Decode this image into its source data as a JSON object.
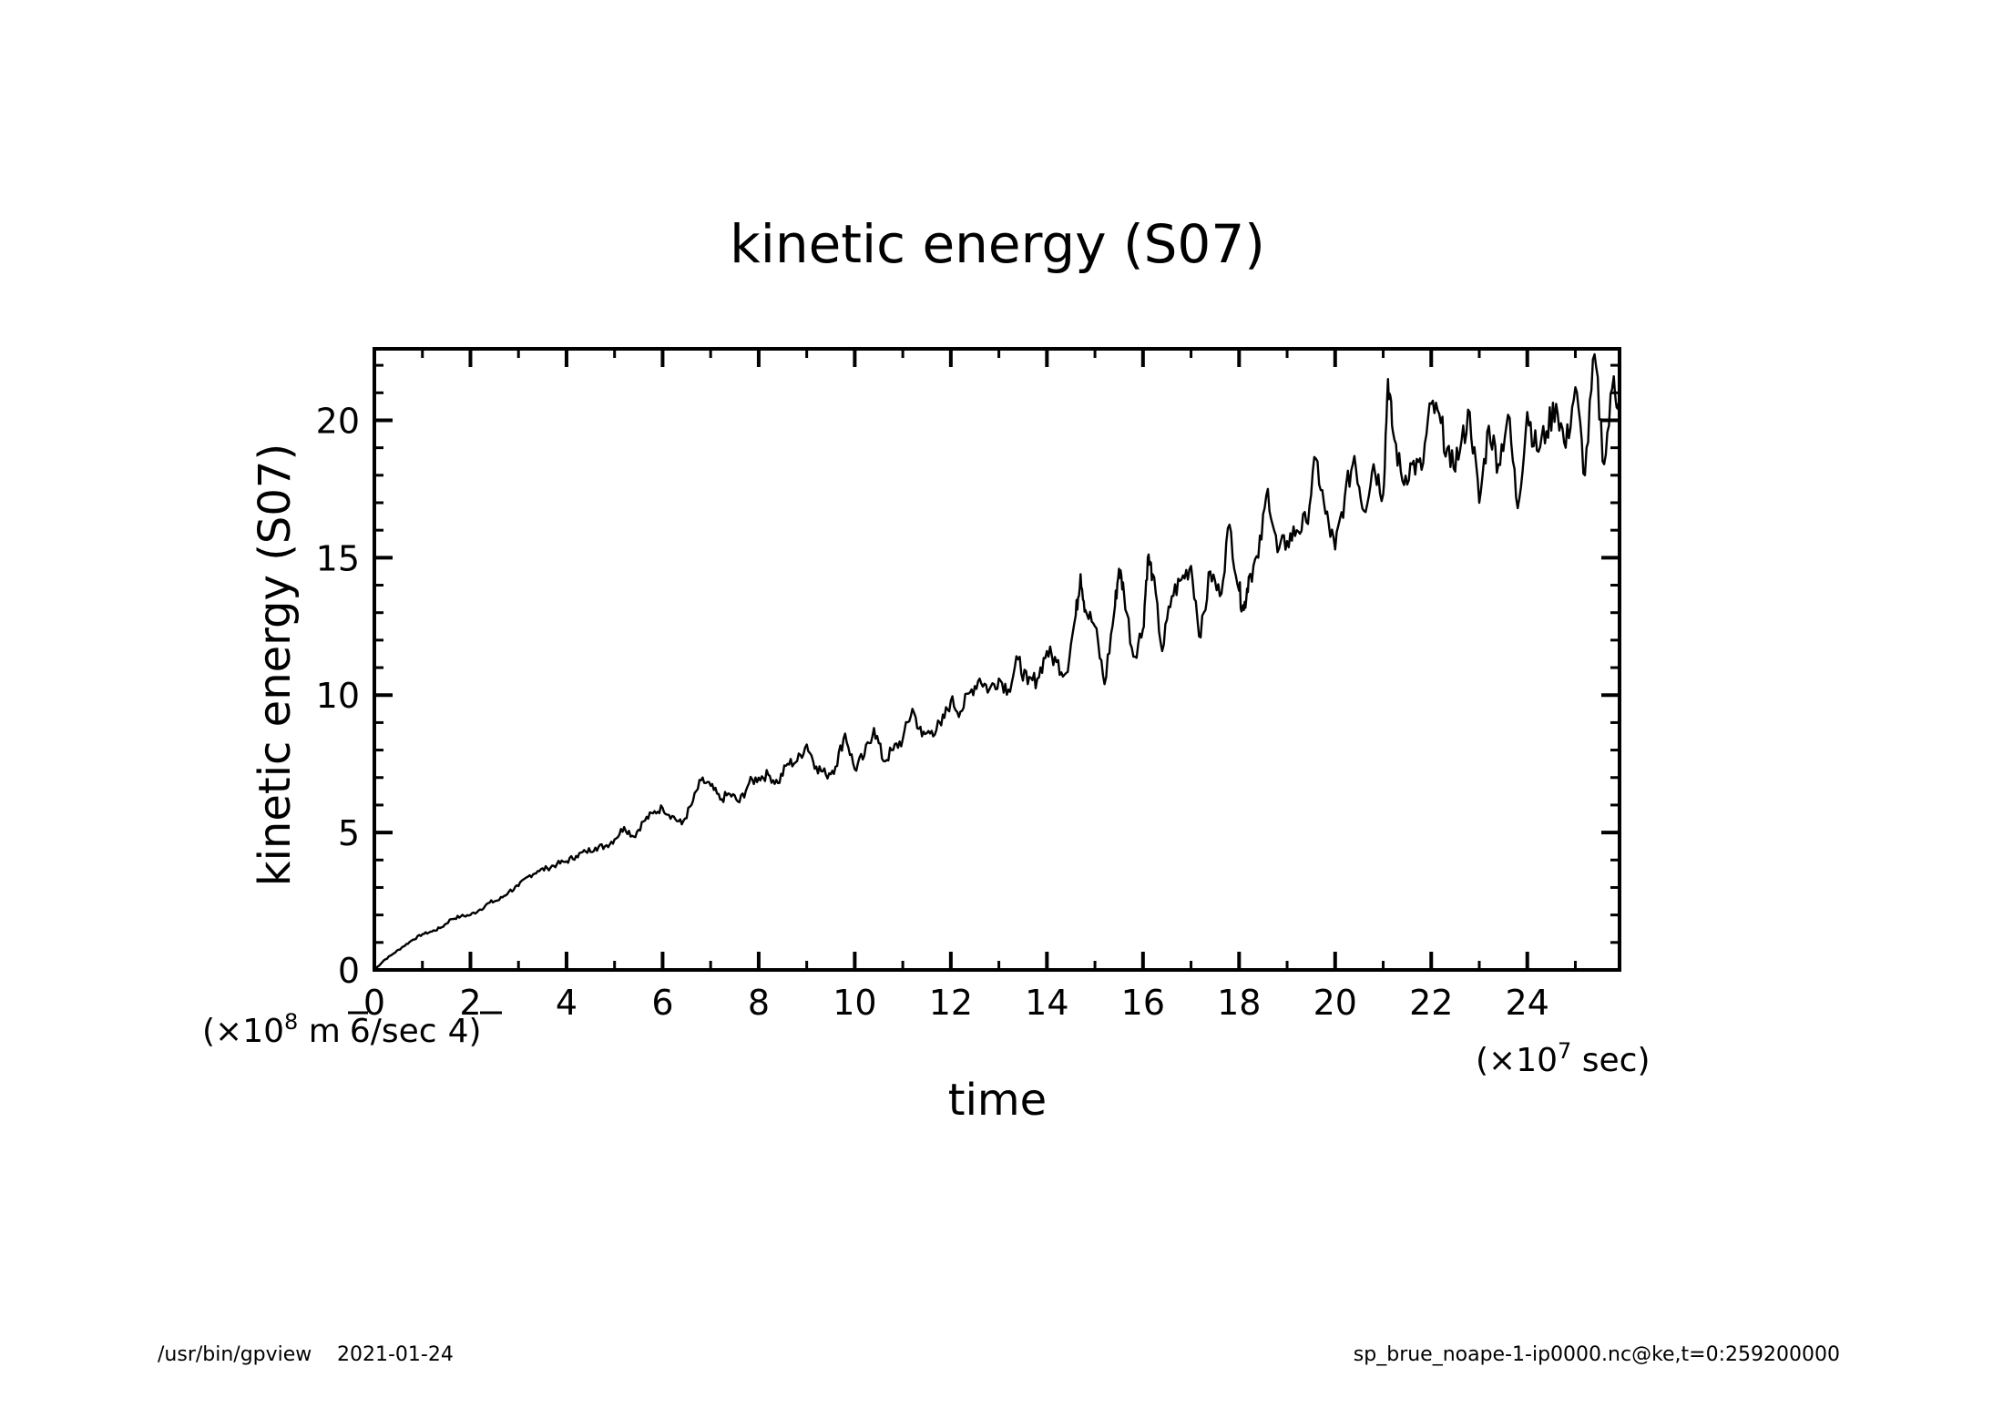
{
  "chart_data": {
    "type": "line",
    "title": "kinetic energy (S07)",
    "xlabel": "time",
    "ylabel": "kinetic energy (S07)",
    "x_unit": "(×10^7 sec)",
    "x_unit_base": "(×10",
    "x_unit_exp": "7",
    "x_unit_rest": " sec)",
    "y_unit_base": "(×10",
    "y_unit_exp": "8",
    "y_unit_rest": " m^6/sec^4)",
    "y_unit_display_m": " m",
    "y_unit_display_6": "6/sec",
    "y_unit_display_4": "4)",
    "xlim": [
      0,
      25.92
    ],
    "ylim": [
      0,
      22.6
    ],
    "x_major_ticks": [
      0,
      2,
      4,
      6,
      8,
      10,
      12,
      14,
      16,
      18,
      20,
      22,
      24
    ],
    "x_tick_labels": [
      "0",
      "2",
      "4",
      "6",
      "8",
      "10",
      "12",
      "14",
      "16",
      "18",
      "20",
      "22",
      "24"
    ],
    "x_minor_step": 1,
    "y_major_ticks": [
      0,
      5,
      10,
      15,
      20
    ],
    "y_tick_labels": [
      "0",
      "5",
      "10",
      "15",
      "20"
    ],
    "y_minor_step": 1,
    "grid": false,
    "series": [
      {
        "name": "kinetic energy (S07)",
        "color": "#000000",
        "x": [
          0,
          0.2,
          0.4,
          0.6,
          0.8,
          1.0,
          1.2,
          1.4,
          1.6,
          1.8,
          2.0,
          2.2,
          2.4,
          2.6,
          2.8,
          3.0,
          3.2,
          3.4,
          3.6,
          3.8,
          4.0,
          4.2,
          4.4,
          4.6,
          4.8,
          5.0,
          5.2,
          5.4,
          5.6,
          5.8,
          6.0,
          6.2,
          6.4,
          6.6,
          6.8,
          7.0,
          7.2,
          7.4,
          7.6,
          7.8,
          8.0,
          8.2,
          8.4,
          8.6,
          8.8,
          9.0,
          9.2,
          9.4,
          9.6,
          9.8,
          10.0,
          10.2,
          10.4,
          10.6,
          10.8,
          11.0,
          11.2,
          11.4,
          11.6,
          11.8,
          12.0,
          12.2,
          12.4,
          12.6,
          12.8,
          13.0,
          13.2,
          13.4,
          13.6,
          13.8,
          14.0,
          14.2,
          14.4,
          14.6,
          14.7,
          14.8,
          15.0,
          15.2,
          15.4,
          15.5,
          15.6,
          15.8,
          16.0,
          16.1,
          16.2,
          16.4,
          16.6,
          16.8,
          17.0,
          17.2,
          17.4,
          17.6,
          17.8,
          18.0,
          18.1,
          18.2,
          18.4,
          18.6,
          18.8,
          19.0,
          19.2,
          19.4,
          19.6,
          19.8,
          20.0,
          20.2,
          20.4,
          20.6,
          20.8,
          21.0,
          21.1,
          21.2,
          21.4,
          21.6,
          21.8,
          22.0,
          22.2,
          22.4,
          22.6,
          22.8,
          23.0,
          23.2,
          23.4,
          23.6,
          23.8,
          24.0,
          24.2,
          24.4,
          24.6,
          24.8,
          25.0,
          25.2,
          25.4,
          25.6,
          25.8,
          25.92
        ],
        "y": [
          0,
          0.35,
          0.6,
          0.85,
          1.1,
          1.3,
          1.4,
          1.55,
          1.85,
          1.95,
          2.0,
          2.2,
          2.45,
          2.55,
          2.85,
          3.05,
          3.4,
          3.6,
          3.7,
          3.85,
          3.95,
          4.15,
          4.3,
          4.45,
          4.5,
          4.75,
          5.2,
          4.85,
          5.4,
          5.7,
          5.9,
          5.6,
          5.3,
          6.0,
          6.9,
          6.7,
          6.2,
          6.4,
          6.1,
          6.8,
          7.0,
          7.1,
          6.8,
          7.5,
          7.6,
          8.2,
          7.4,
          7.1,
          7.4,
          8.6,
          7.3,
          7.8,
          8.8,
          7.6,
          8.0,
          8.4,
          9.5,
          8.5,
          8.7,
          8.9,
          9.8,
          9.4,
          10.1,
          10.6,
          10.2,
          10.6,
          10.2,
          11.3,
          10.4,
          10.6,
          11.6,
          11.2,
          10.8,
          12.9,
          14.4,
          13.1,
          12.5,
          10.4,
          13.0,
          14.6,
          13.8,
          11.4,
          12.4,
          15.0,
          14.4,
          11.6,
          13.6,
          14.2,
          14.7,
          12.1,
          14.5,
          13.6,
          16.2,
          13.8,
          13.1,
          14.3,
          15.0,
          17.5,
          15.2,
          15.6,
          16.0,
          16.3,
          18.6,
          16.6,
          15.3,
          17.2,
          18.7,
          16.7,
          18.4,
          17.3,
          21.5,
          19.6,
          17.8,
          18.4,
          18.2,
          20.6,
          19.9,
          18.3,
          18.9,
          20.3,
          17.0,
          19.8,
          18.4,
          20.2,
          16.8,
          20.3,
          18.9,
          19.6,
          20.6,
          19.0,
          21.2,
          18.0,
          22.4,
          18.4,
          21.6,
          20.2
        ]
      }
    ]
  },
  "footer": {
    "left_program": "/usr/bin/gpview",
    "left_date": "2021-01-24",
    "right_source": "sp_brue_noape-1-ip0000.nc@ke,t=0:259200000"
  }
}
